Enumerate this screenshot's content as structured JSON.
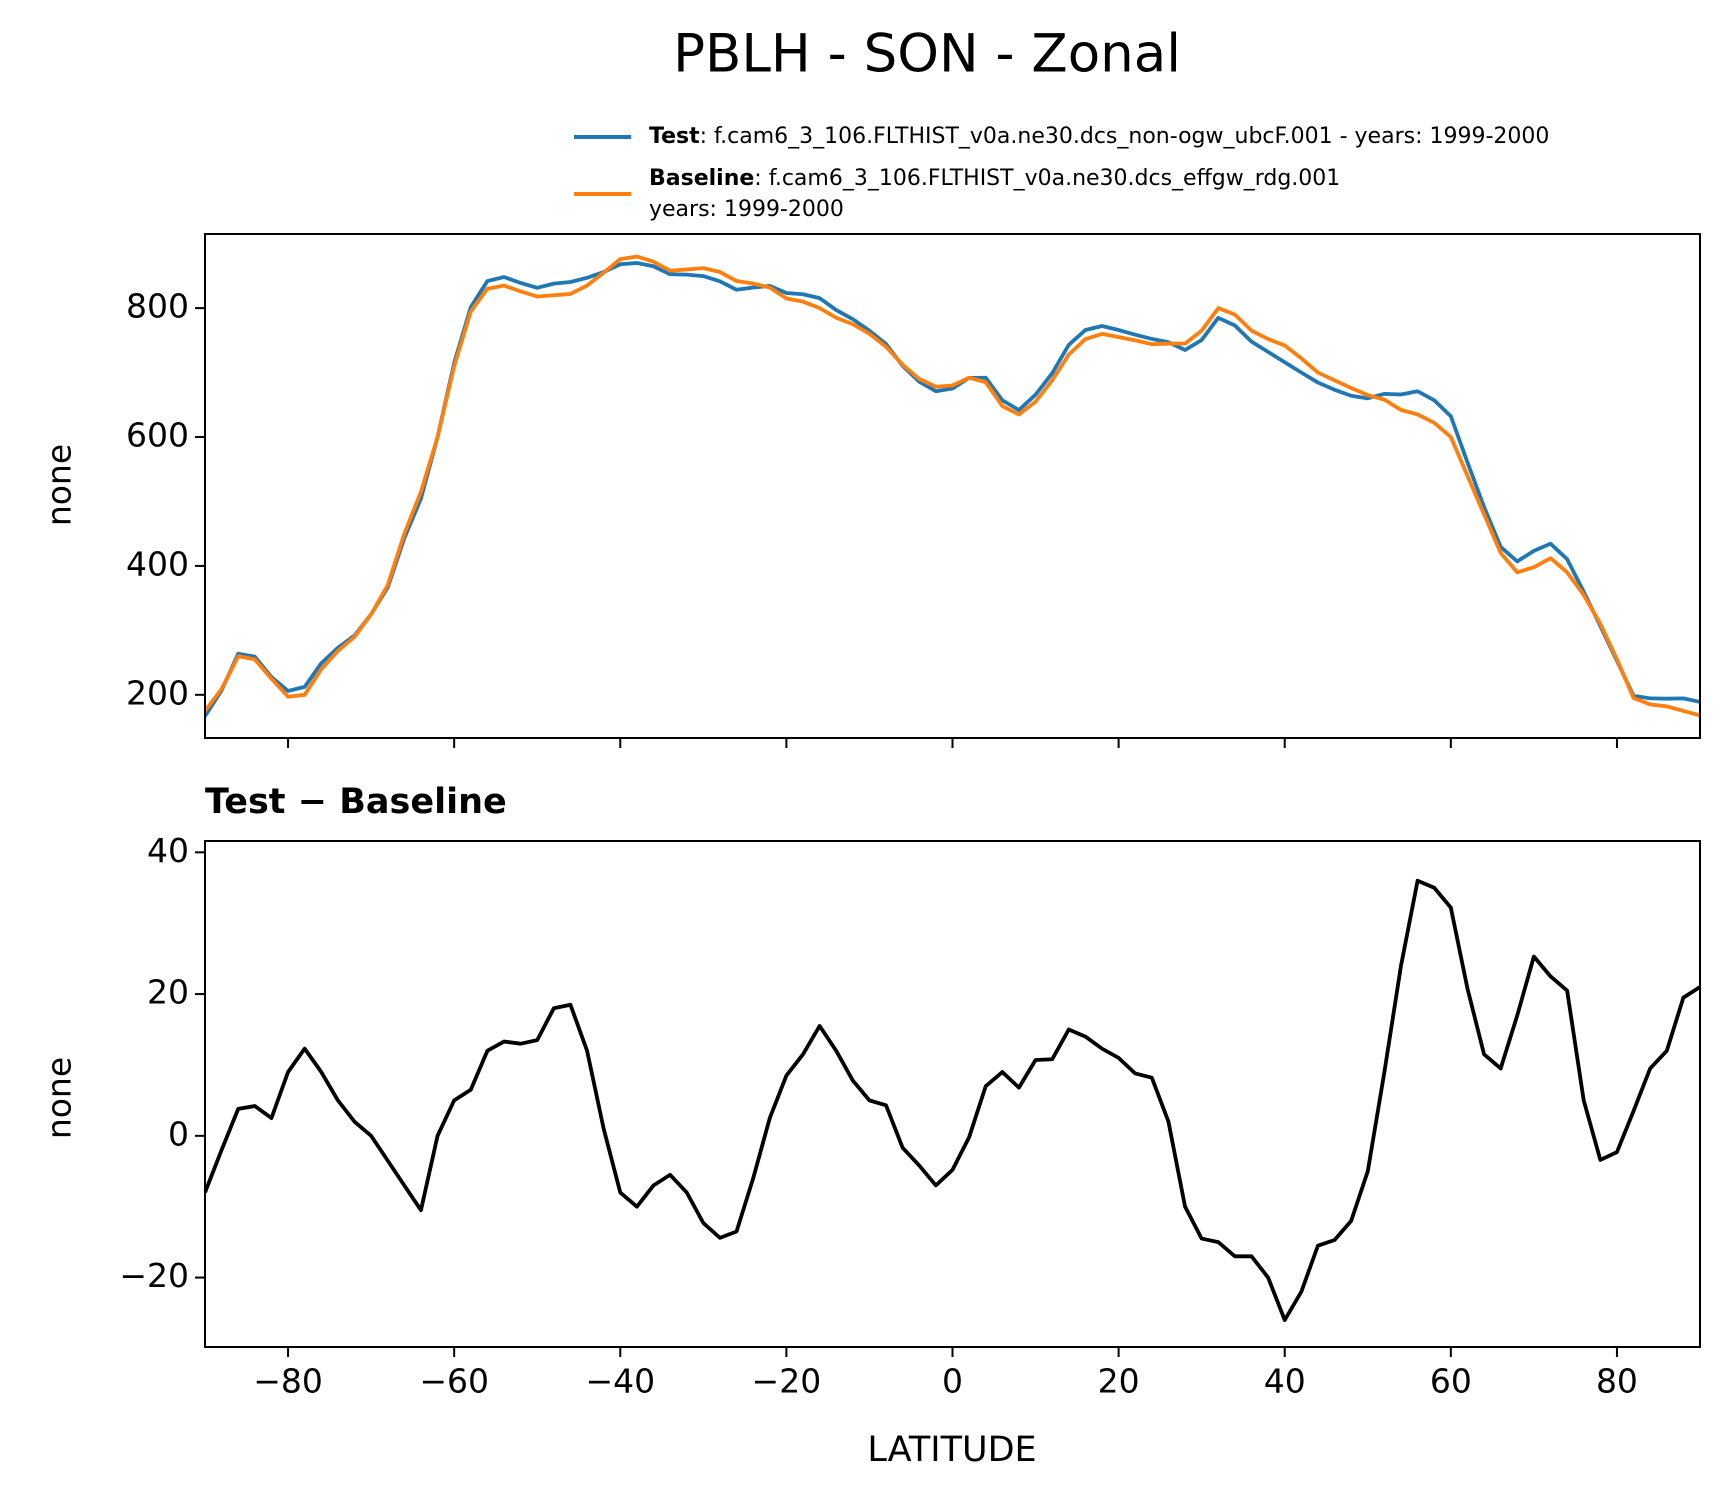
{
  "chart_data": [
    {
      "type": "line",
      "title": "PBLH - SON - Zonal",
      "ylabel": "none",
      "x": [
        -90,
        -88,
        -86,
        -84,
        -82,
        -80,
        -78,
        -76,
        -74,
        -72,
        -70,
        -68,
        -66,
        -64,
        -62,
        -60,
        -58,
        -56,
        -54,
        -52,
        -50,
        -48,
        -46,
        -44,
        -42,
        -40,
        -38,
        -36,
        -34,
        -32,
        -30,
        -28,
        -26,
        -24,
        -22,
        -20,
        -18,
        -16,
        -14,
        -12,
        -10,
        -8,
        -6,
        -4,
        -2,
        0,
        2,
        4,
        6,
        8,
        10,
        12,
        14,
        16,
        18,
        20,
        22,
        24,
        26,
        28,
        30,
        32,
        34,
        36,
        38,
        40,
        42,
        44,
        46,
        48,
        50,
        52,
        54,
        56,
        58,
        60,
        62,
        64,
        66,
        68,
        70,
        72,
        74,
        76,
        78,
        80,
        82,
        84,
        86,
        88,
        90
      ],
      "series": [
        {
          "name": "Test",
          "description": [
            ": f.cam6_3_106.FLTHIST_v0a.ne30.dcs_non-ogw_ubcF.001 - years: 1999-2000"
          ],
          "color": "#1f77b4",
          "values": [
            167,
            207,
            263.8,
            259.2,
            227.5,
            206,
            212.3,
            249,
            273,
            292,
            325,
            366.5,
            443,
            504.5,
            600,
            715,
            801.5,
            842,
            848.3,
            839,
            831.5,
            838,
            840.5,
            847,
            856,
            868,
            870,
            865,
            852.5,
            852,
            849.7,
            841.6,
            828.5,
            832,
            834.5,
            823.5,
            821.5,
            815.5,
            797,
            782.8,
            765,
            744.3,
            710.3,
            685.8,
            671,
            675.2,
            691.8,
            692,
            657,
            641.8,
            665.7,
            698.8,
            743,
            766,
            772.3,
            766,
            758.8,
            752.2,
            747,
            735,
            750.5,
            785,
            773,
            748,
            732,
            716,
            700,
            684.5,
            673.3,
            664,
            660,
            667,
            666,
            671,
            657,
            632.2,
            560.8,
            491.5,
            429.5,
            407,
            423.3,
            434.5,
            410.5,
            360,
            306.6,
            252.7,
            198.5,
            194.5,
            194,
            194.5,
            189
          ]
        },
        {
          "name": "Baseline",
          "description": [
            ": f.cam6_3_106.FLTHIST_v0a.ne30.dcs_effgw_rdg.001",
            "years: 1999-2000"
          ],
          "color": "#ff7f0e",
          "values": [
            175,
            209,
            260,
            255,
            225,
            197,
            200,
            240,
            268,
            290,
            325,
            370,
            450,
            515,
            600,
            710,
            795,
            830,
            835,
            826,
            818,
            820,
            822,
            835,
            855,
            876,
            880,
            872,
            858,
            860,
            862,
            856,
            842,
            838,
            832,
            815,
            810,
            800,
            785,
            775,
            760,
            740,
            712,
            690,
            678,
            680,
            692,
            685,
            648,
            635,
            655,
            688,
            728,
            752,
            760,
            755,
            750,
            744,
            745,
            745,
            765,
            800,
            790,
            765,
            752,
            742,
            722,
            700,
            688,
            676,
            665,
            658,
            642,
            635,
            622,
            600,
            540,
            480,
            420,
            390,
            398,
            412,
            390,
            355,
            310,
            255,
            195,
            185,
            182,
            175,
            168
          ]
        }
      ],
      "xlim": [
        -90,
        90
      ],
      "ylim": [
        133,
        915
      ],
      "yticks": [
        200,
        400,
        600,
        800
      ]
    },
    {
      "type": "line",
      "title": "Test − Baseline",
      "xlabel": "LATITUDE",
      "ylabel": "none",
      "x": [
        -90,
        -88,
        -86,
        -84,
        -82,
        -80,
        -78,
        -76,
        -74,
        -72,
        -70,
        -68,
        -66,
        -64,
        -62,
        -60,
        -58,
        -56,
        -54,
        -52,
        -50,
        -48,
        -46,
        -44,
        -42,
        -40,
        -38,
        -36,
        -34,
        -32,
        -30,
        -28,
        -26,
        -24,
        -22,
        -20,
        -18,
        -16,
        -14,
        -12,
        -10,
        -8,
        -6,
        -4,
        -2,
        0,
        2,
        4,
        6,
        8,
        10,
        12,
        14,
        16,
        18,
        20,
        22,
        24,
        26,
        28,
        30,
        32,
        34,
        36,
        38,
        40,
        42,
        44,
        46,
        48,
        50,
        52,
        54,
        56,
        58,
        60,
        62,
        64,
        66,
        68,
        70,
        72,
        74,
        76,
        78,
        80,
        82,
        84,
        86,
        88,
        90
      ],
      "series": [
        {
          "color": "#000000",
          "values": [
            -8,
            -2,
            3.8,
            4.2,
            2.5,
            9,
            12.3,
            9,
            5,
            2,
            0,
            -3.5,
            -7,
            -10.5,
            0,
            5,
            6.5,
            12,
            13.3,
            13,
            13.5,
            18,
            18.5,
            12,
            1,
            -8,
            -10,
            -7,
            -5.5,
            -8,
            -12.3,
            -14.4,
            -13.5,
            -6,
            2.5,
            8.5,
            11.5,
            15.5,
            12,
            7.8,
            5,
            4.3,
            -1.7,
            -4.2,
            -7,
            -4.8,
            -0.2,
            7,
            9,
            6.8,
            10.7,
            10.8,
            15,
            14,
            12.3,
            11,
            8.8,
            8.2,
            2,
            -10,
            -14.5,
            -15,
            -17,
            -17,
            -20,
            -26,
            -22,
            -15.5,
            -14.7,
            -12,
            -5,
            9,
            24,
            36,
            35,
            32.2,
            20.8,
            11.5,
            9.5,
            17,
            25.3,
            22.5,
            20.5,
            5,
            -3.4,
            -2.3,
            3.5,
            9.5,
            12,
            19.5,
            21
          ]
        }
      ],
      "xlim": [
        -90,
        90
      ],
      "ylim": [
        -29.8,
        41.6
      ],
      "xticks": [
        {
          "value": -80,
          "label": "−80"
        },
        {
          "value": -60,
          "label": "−60"
        },
        {
          "value": -40,
          "label": "−40"
        },
        {
          "value": -20,
          "label": "−20"
        },
        0,
        20,
        40,
        60,
        80
      ],
      "yticks": [
        {
          "value": -20,
          "label": "−20"
        },
        0,
        20,
        40
      ]
    }
  ]
}
